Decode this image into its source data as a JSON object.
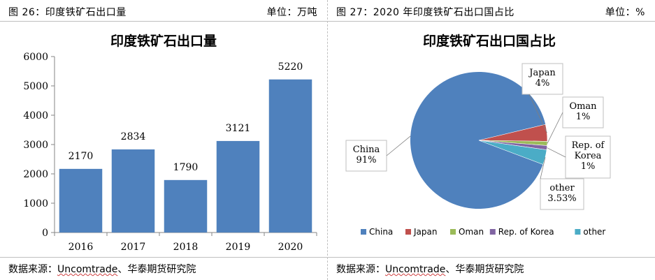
{
  "panels": [
    {
      "header_title": "图 26：印度铁矿石出口量",
      "header_unit": "单位：万吨",
      "source_prefix": "数据来源：",
      "source_underlined": "Uncomtrade",
      "source_suffix": "、华泰期货研究院"
    },
    {
      "header_title": "图 27：2020 年印度铁矿石出口国占比",
      "header_unit": "单位：%",
      "source_prefix": "数据来源：",
      "source_underlined": "Uncomtrade",
      "source_suffix": "、华泰期货研究院"
    }
  ],
  "chart_data": [
    {
      "type": "bar",
      "title": "印度铁矿石出口量",
      "categories": [
        "2016",
        "2017",
        "2018",
        "2019",
        "2020"
      ],
      "values": [
        2170,
        2834,
        1790,
        3121,
        5220
      ],
      "data_labels": [
        "2170",
        "2834",
        "1790",
        "3121",
        "5220"
      ],
      "ylim": [
        0,
        6000
      ],
      "yticks": [
        "0",
        "1000",
        "2000",
        "3000",
        "4000",
        "5000",
        "6000"
      ],
      "color": "#4f81bd",
      "grid": false,
      "legend": false
    },
    {
      "type": "pie",
      "title": "印度铁矿石出口国占比",
      "labels": [
        "China",
        "Japan",
        "Oman",
        "Rep. of Korea",
        "other"
      ],
      "values": [
        91,
        4,
        1,
        1,
        3.53
      ],
      "value_labels": [
        "91%",
        "4%",
        "1%",
        "1%",
        "3.53%"
      ],
      "callout_lines": [
        [
          "China",
          "91%"
        ],
        [
          "Japan",
          "4%"
        ],
        [
          "Oman",
          "1%"
        ],
        [
          "Rep. of",
          "Korea",
          "1%"
        ],
        [
          "other",
          "3.53%"
        ]
      ],
      "colors": [
        "#4f81bd",
        "#c0504d",
        "#9bbb59",
        "#8064a2",
        "#4bacc6"
      ],
      "legend_position": "bottom"
    }
  ]
}
